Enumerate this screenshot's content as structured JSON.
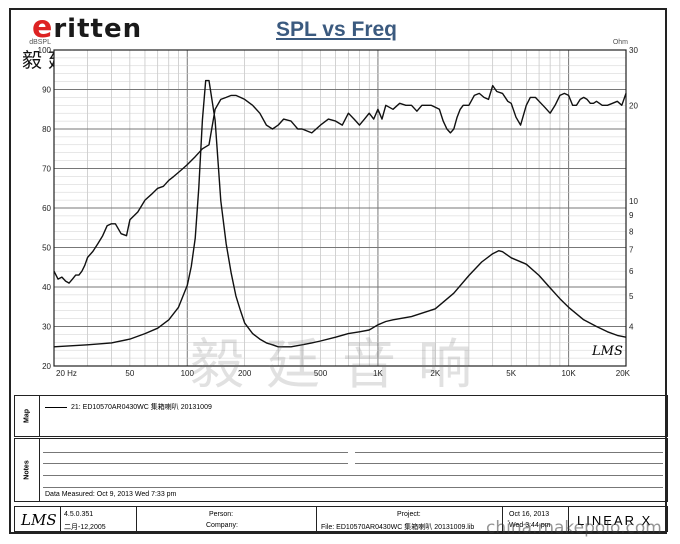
{
  "brand": {
    "first_letter": "e",
    "rest": "ritten",
    "chinese": "毅廷音响"
  },
  "chart_data": {
    "type": "line",
    "title": "SPL vs Freq",
    "ylabel_left": "dBSPL",
    "ylabel_right": "Ohm",
    "xscale": "log",
    "xlim": [
      20,
      20000
    ],
    "ylim_left": [
      20,
      100
    ],
    "ylim_right": [
      3,
      30
    ],
    "yscale_right": "log",
    "grid": true,
    "x_ticks": [
      {
        "value": 20,
        "label": "20 Hz"
      },
      {
        "value": 50,
        "label": "50"
      },
      {
        "value": 100,
        "label": "100"
      },
      {
        "value": 200,
        "label": "200"
      },
      {
        "value": 500,
        "label": "500"
      },
      {
        "value": 1000,
        "label": "1K"
      },
      {
        "value": 2000,
        "label": "2K"
      },
      {
        "value": 5000,
        "label": "5K"
      },
      {
        "value": 10000,
        "label": "10K"
      },
      {
        "value": 20000,
        "label": "20K"
      }
    ],
    "y_ticks_left": [
      {
        "value": 20,
        "label": "20"
      },
      {
        "value": 30,
        "label": "30"
      },
      {
        "value": 40,
        "label": "40"
      },
      {
        "value": 50,
        "label": "50"
      },
      {
        "value": 60,
        "label": "60"
      },
      {
        "value": 70,
        "label": "70"
      },
      {
        "value": 80,
        "label": "80"
      },
      {
        "value": 90,
        "label": "90"
      },
      {
        "value": 100,
        "label": "100"
      }
    ],
    "y_ticks_right": [
      {
        "value": 4,
        "label": "4"
      },
      {
        "value": 5,
        "label": "5"
      },
      {
        "value": 6,
        "label": "6"
      },
      {
        "value": 7,
        "label": "7"
      },
      {
        "value": 8,
        "label": "8"
      },
      {
        "value": 9,
        "label": "9"
      },
      {
        "value": 10,
        "label": "10"
      },
      {
        "value": 20,
        "label": "20"
      },
      {
        "value": 30,
        "label": "30"
      }
    ],
    "series": [
      {
        "axis": "left",
        "x": [
          20,
          21,
          22,
          23,
          24,
          25,
          26,
          27,
          28,
          29,
          30,
          32,
          34,
          36,
          38,
          40,
          42,
          45,
          48,
          50,
          55,
          60,
          65,
          70,
          75,
          80,
          85,
          90,
          95,
          100,
          105,
          110,
          120,
          130,
          140,
          150,
          160,
          170,
          180,
          190,
          200,
          220,
          240,
          260,
          280,
          300,
          320,
          350,
          380,
          400,
          450,
          500,
          550,
          600,
          650,
          700,
          750,
          800,
          850,
          900,
          950,
          1000,
          1050,
          1100,
          1200,
          1300,
          1400,
          1500,
          1600,
          1700,
          1800,
          1900,
          2000,
          2100,
          2200,
          2300,
          2400,
          2500,
          2600,
          2700,
          2800,
          3000,
          3200,
          3400,
          3600,
          3800,
          4000,
          4200,
          4500,
          4800,
          5000,
          5300,
          5600,
          6000,
          6300,
          6700,
          7000,
          7500,
          8000,
          8500,
          9000,
          9500,
          10000,
          10500,
          11000,
          11500,
          12000,
          12500,
          13000,
          13500,
          14000,
          15000,
          16000,
          17000,
          18000,
          19000,
          20000
        ],
        "y": [
          44,
          42,
          42.5,
          41.5,
          41,
          42,
          43,
          43,
          44,
          45.5,
          47.5,
          49,
          51,
          53,
          55.5,
          56,
          56,
          53.5,
          53,
          57,
          59,
          62,
          63.5,
          65,
          65.5,
          67,
          68,
          69,
          70,
          71,
          72,
          73,
          75,
          76,
          85,
          87.5,
          88,
          88.5,
          88.5,
          88,
          87.5,
          86,
          84,
          81,
          80,
          81,
          82.5,
          82,
          80,
          80,
          79,
          81,
          82.5,
          82,
          81,
          84,
          82.5,
          81,
          82.5,
          84,
          82.5,
          85,
          82.5,
          86,
          85,
          86.5,
          86,
          86,
          84.5,
          86,
          86,
          86,
          85.5,
          85,
          82,
          80,
          79,
          80,
          83,
          85,
          86,
          86,
          88.5,
          89,
          88,
          87.5,
          91,
          89.5,
          89,
          87,
          86.5,
          83,
          81,
          86,
          88,
          88,
          87,
          85.5,
          84,
          86,
          88.5,
          89,
          88.5,
          86,
          86,
          87.5,
          88,
          87.5,
          86.5,
          86.5,
          87,
          86,
          86,
          86.5,
          87,
          86,
          89
        ]
      },
      {
        "axis": "right",
        "x": [
          20,
          30,
          40,
          50,
          60,
          70,
          80,
          90,
          100,
          105,
          110,
          115,
          120,
          125,
          130,
          140,
          150,
          160,
          170,
          180,
          190,
          200,
          220,
          240,
          260,
          280,
          300,
          350,
          400,
          450,
          500,
          600,
          700,
          800,
          900,
          1000,
          1100,
          1200,
          1500,
          2000,
          2500,
          3000,
          3500,
          4000,
          4300,
          4500,
          5000,
          6000,
          7000,
          8000,
          9000,
          10000,
          12000,
          14000,
          16000,
          18000,
          20000
        ],
        "y": [
          3.45,
          3.5,
          3.55,
          3.65,
          3.8,
          3.95,
          4.2,
          4.6,
          5.4,
          6.2,
          7.6,
          11,
          18,
          24,
          24,
          18,
          10,
          7.3,
          5.9,
          5,
          4.5,
          4.1,
          3.8,
          3.65,
          3.55,
          3.5,
          3.45,
          3.45,
          3.5,
          3.55,
          3.6,
          3.7,
          3.8,
          3.85,
          3.9,
          4.05,
          4.15,
          4.2,
          4.3,
          4.55,
          5.1,
          5.8,
          6.4,
          6.8,
          6.95,
          6.9,
          6.6,
          6.3,
          5.8,
          5.3,
          4.9,
          4.6,
          4.2,
          4,
          3.85,
          3.75,
          3.7
        ]
      }
    ]
  },
  "map_panel": {
    "label": "Map",
    "entry": "21: ED10570AR0430WC 集箱喇叭   20131009"
  },
  "notes_panel": {
    "label": "Notes",
    "date_measured": "Data Measured: Oct  9, 2013   Wed   7:33 pm"
  },
  "footer": {
    "logo": "LMS",
    "version": "4.5.0.351",
    "version_date": "二月-12,2005",
    "person_label": "Person:",
    "company_label": "Company:",
    "project_label": "Project:",
    "file_label": "File: ED10570AR0430WC 集箱喇叭 20131009.lib",
    "date": "Oct 16, 2013",
    "day_time": "Wed  3:44 pm",
    "brand": "LINEAR X"
  },
  "chart_logo": "LMS",
  "watermark": "毅廷音响",
  "site_watermark": "china.makepolo.com"
}
